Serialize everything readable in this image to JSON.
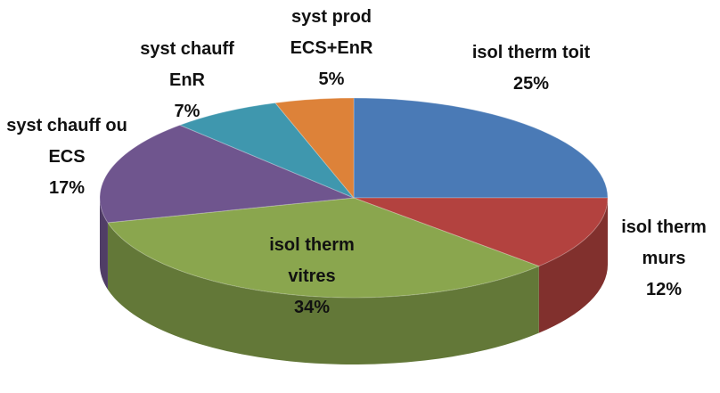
{
  "chart_data": {
    "type": "pie",
    "categories": [
      "isol therm toit",
      "isol therm murs",
      "isol therm vitres",
      "syst chauff ou ECS",
      "syst chauff EnR",
      "syst prod ECS+EnR"
    ],
    "values": [
      25,
      12,
      34,
      17,
      7,
      5
    ],
    "value_labels": [
      "25%",
      "12%",
      "34%",
      "17%",
      "7%",
      "5%"
    ],
    "colors": [
      "#4a7ab6",
      "#b3423f",
      "#8aa64e",
      "#6f558e",
      "#3f97ae",
      "#dd8239"
    ]
  }
}
